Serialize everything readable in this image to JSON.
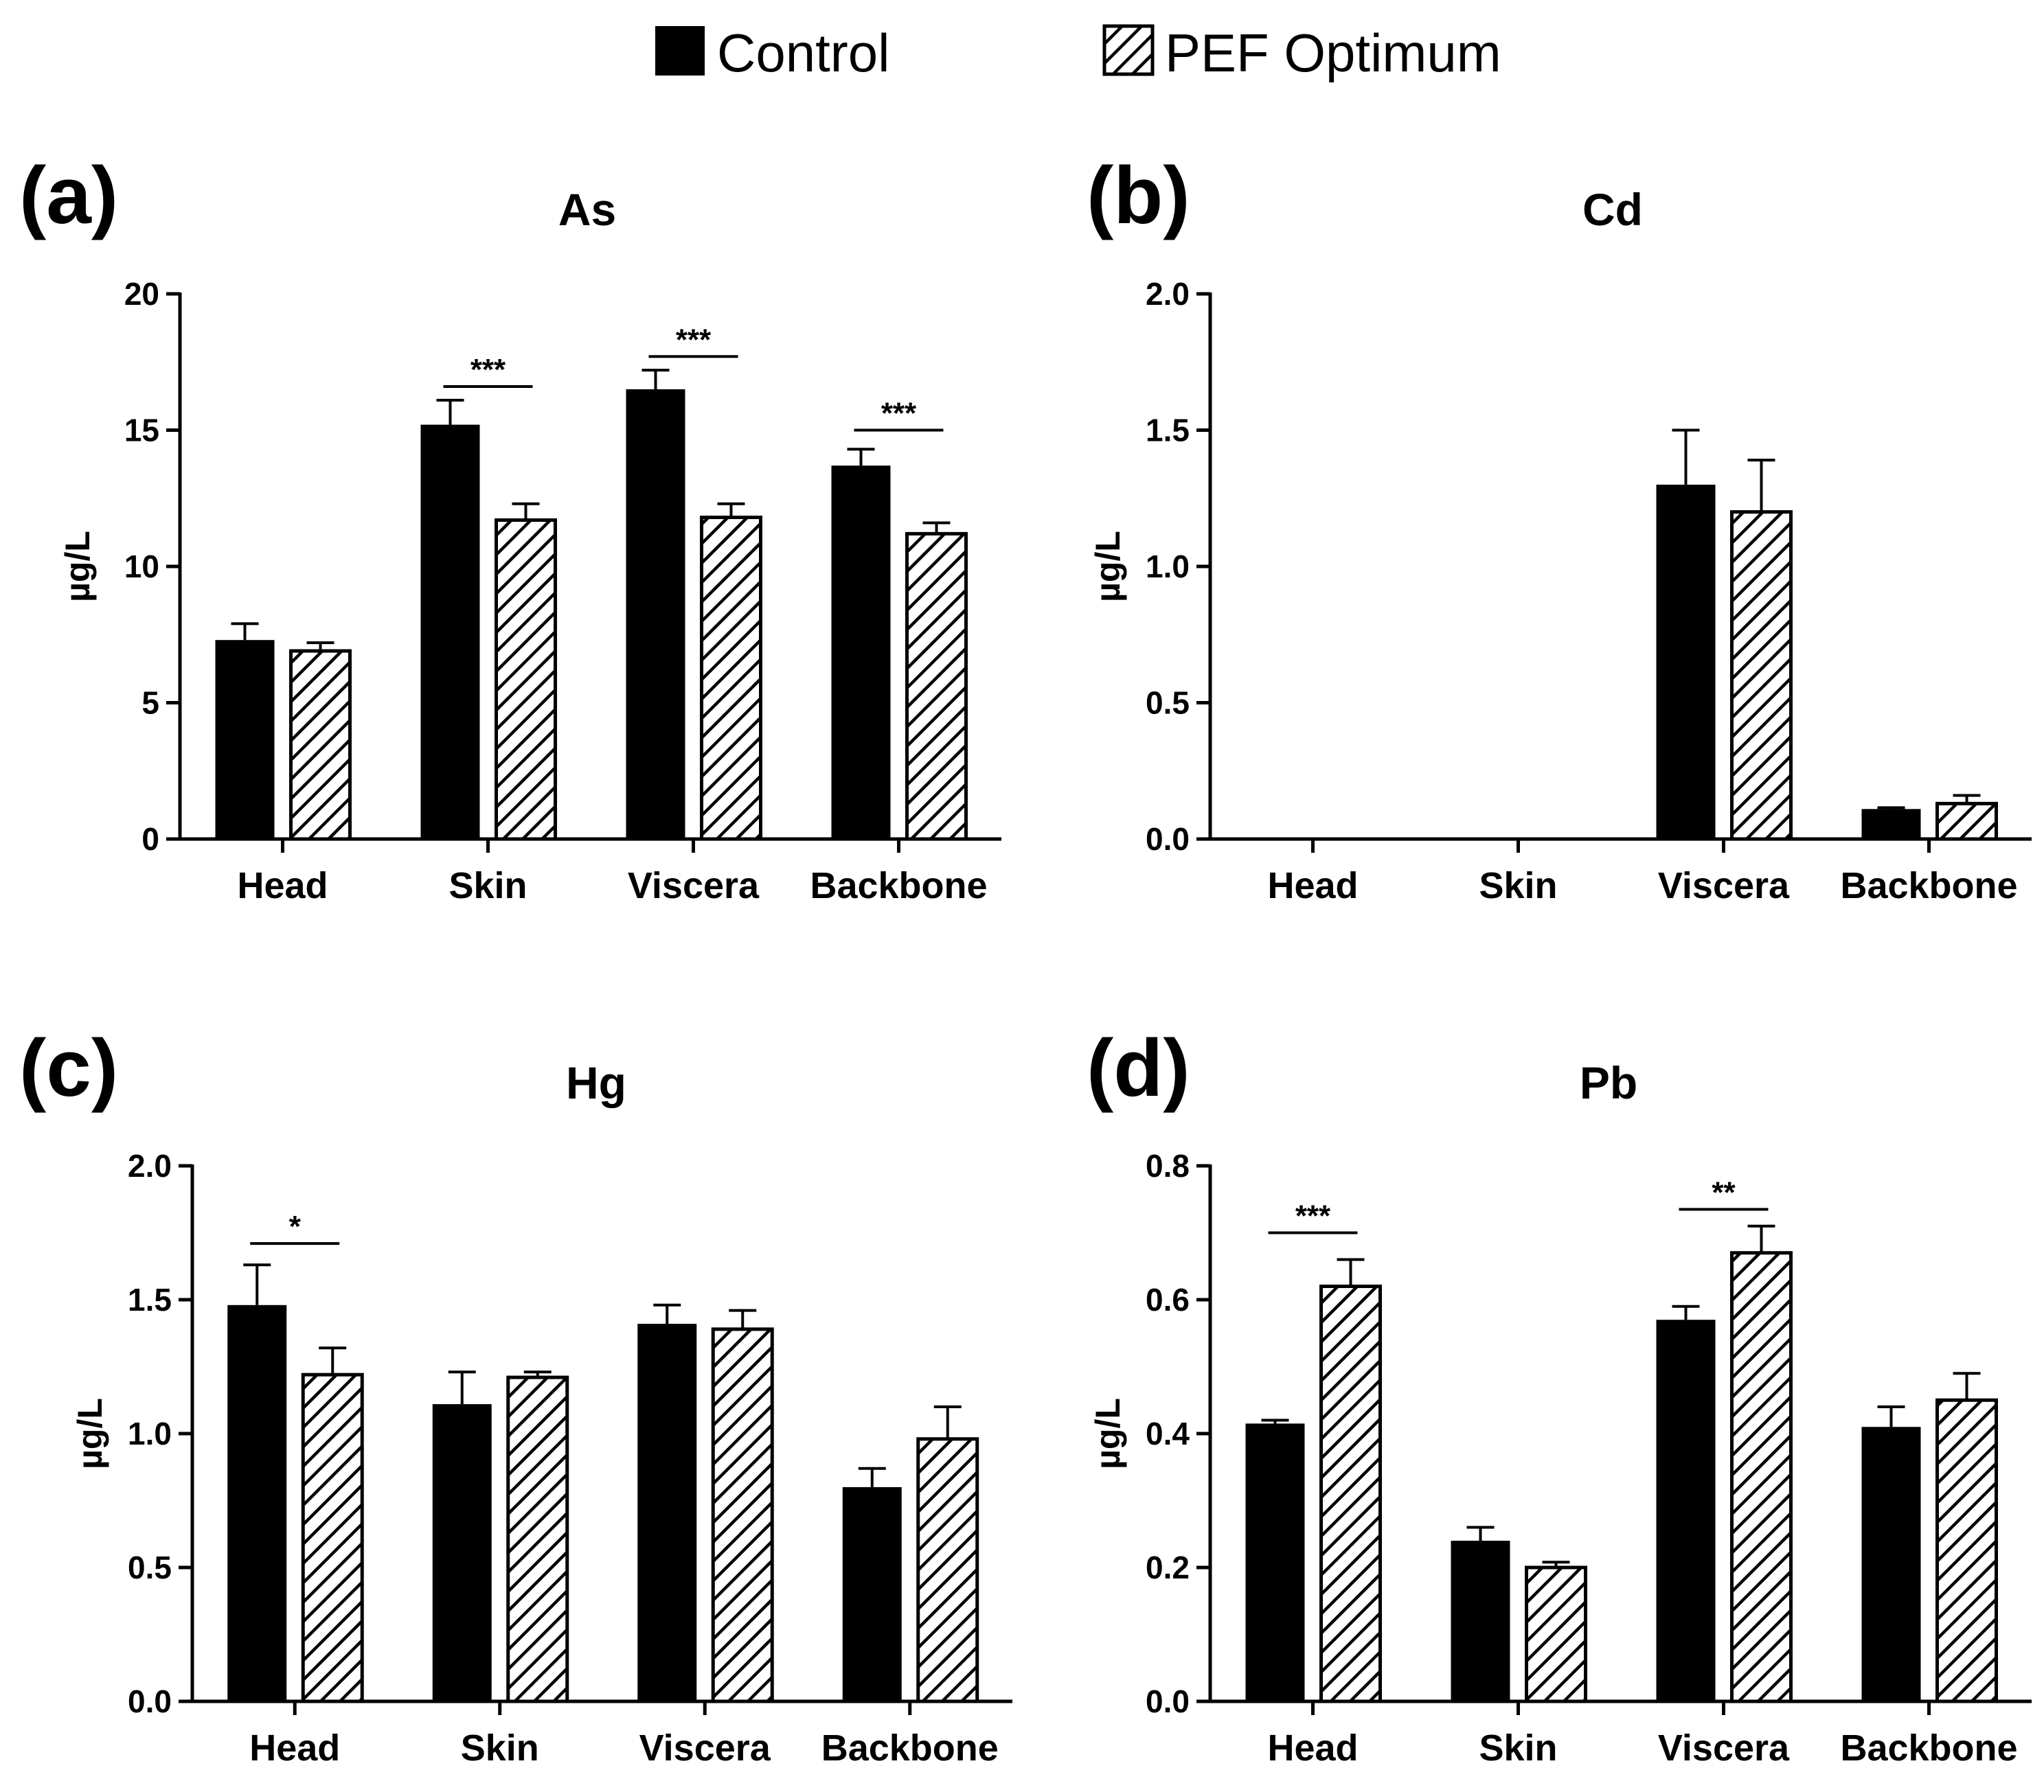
{
  "legend": {
    "items": [
      {
        "label": "Control",
        "style": "solid"
      },
      {
        "label": "PEF Optimum",
        "style": "hatched"
      }
    ]
  },
  "colors": {
    "bar": "#000000",
    "background": "#ffffff"
  },
  "chart_data": [
    {
      "type": "bar",
      "panel": "(a)",
      "title": "As",
      "ylabel": "µg/L",
      "categories": [
        "Head",
        "Skin",
        "Viscera",
        "Backbone"
      ],
      "ylim": [
        0,
        20
      ],
      "yticks": [
        "0",
        "5",
        "10",
        "15",
        "20"
      ],
      "series": [
        {
          "name": "Control",
          "values": [
            7.3,
            15.2,
            16.5,
            13.7
          ],
          "errors": [
            0.6,
            0.9,
            0.7,
            0.6
          ]
        },
        {
          "name": "PEF Optimum",
          "values": [
            6.9,
            11.7,
            11.8,
            11.2
          ],
          "errors": [
            0.3,
            0.6,
            0.5,
            0.4
          ]
        }
      ],
      "significance": [
        {
          "category": "Skin",
          "label": "***",
          "y": 16.6
        },
        {
          "category": "Viscera",
          "label": "***",
          "y": 17.7
        },
        {
          "category": "Backbone",
          "label": "***",
          "y": 15.0
        }
      ]
    },
    {
      "type": "bar",
      "panel": "(b)",
      "title": "Cd",
      "ylabel": "µg/L",
      "categories": [
        "Head",
        "Skin",
        "Viscera",
        "Backbone"
      ],
      "ylim": [
        0,
        2.0
      ],
      "yticks": [
        "0.0",
        "0.5",
        "1.0",
        "1.5",
        "2.0"
      ],
      "series": [
        {
          "name": "Control",
          "values": [
            0,
            0,
            1.3,
            0.11
          ],
          "errors": [
            0,
            0,
            0.2,
            0.005
          ]
        },
        {
          "name": "PEF Optimum",
          "values": [
            0,
            0,
            1.2,
            0.13
          ],
          "errors": [
            0,
            0,
            0.19,
            0.03
          ]
        }
      ],
      "significance": []
    },
    {
      "type": "bar",
      "panel": "(c)",
      "title": "Hg",
      "ylabel": "µg/L",
      "categories": [
        "Head",
        "Skin",
        "Viscera",
        "Backbone"
      ],
      "ylim": [
        0,
        2.0
      ],
      "yticks": [
        "0.0",
        "0.5",
        "1.0",
        "1.5",
        "2.0"
      ],
      "series": [
        {
          "name": "Control",
          "values": [
            1.48,
            1.11,
            1.41,
            0.8
          ],
          "errors": [
            0.15,
            0.12,
            0.07,
            0.07
          ]
        },
        {
          "name": "PEF Optimum",
          "values": [
            1.22,
            1.21,
            1.39,
            0.98
          ],
          "errors": [
            0.1,
            0.02,
            0.07,
            0.12
          ]
        }
      ],
      "significance": [
        {
          "category": "Head",
          "label": "*",
          "y": 1.71
        }
      ]
    },
    {
      "type": "bar",
      "panel": "(d)",
      "title": "Pb",
      "ylabel": "µg/L",
      "categories": [
        "Head",
        "Skin",
        "Viscera",
        "Backbone"
      ],
      "ylim": [
        0,
        0.8
      ],
      "yticks": [
        "0.0",
        "0.2",
        "0.4",
        "0.6",
        "0.8"
      ],
      "series": [
        {
          "name": "Control",
          "values": [
            0.415,
            0.24,
            0.57,
            0.41
          ],
          "errors": [
            0.005,
            0.02,
            0.02,
            0.03
          ]
        },
        {
          "name": "PEF Optimum",
          "values": [
            0.62,
            0.2,
            0.67,
            0.45
          ],
          "errors": [
            0.04,
            0.008,
            0.04,
            0.04
          ]
        }
      ],
      "significance": [
        {
          "category": "Head",
          "label": "***",
          "y": 0.7
        },
        {
          "category": "Viscera",
          "label": "**",
          "y": 0.735
        }
      ]
    }
  ]
}
